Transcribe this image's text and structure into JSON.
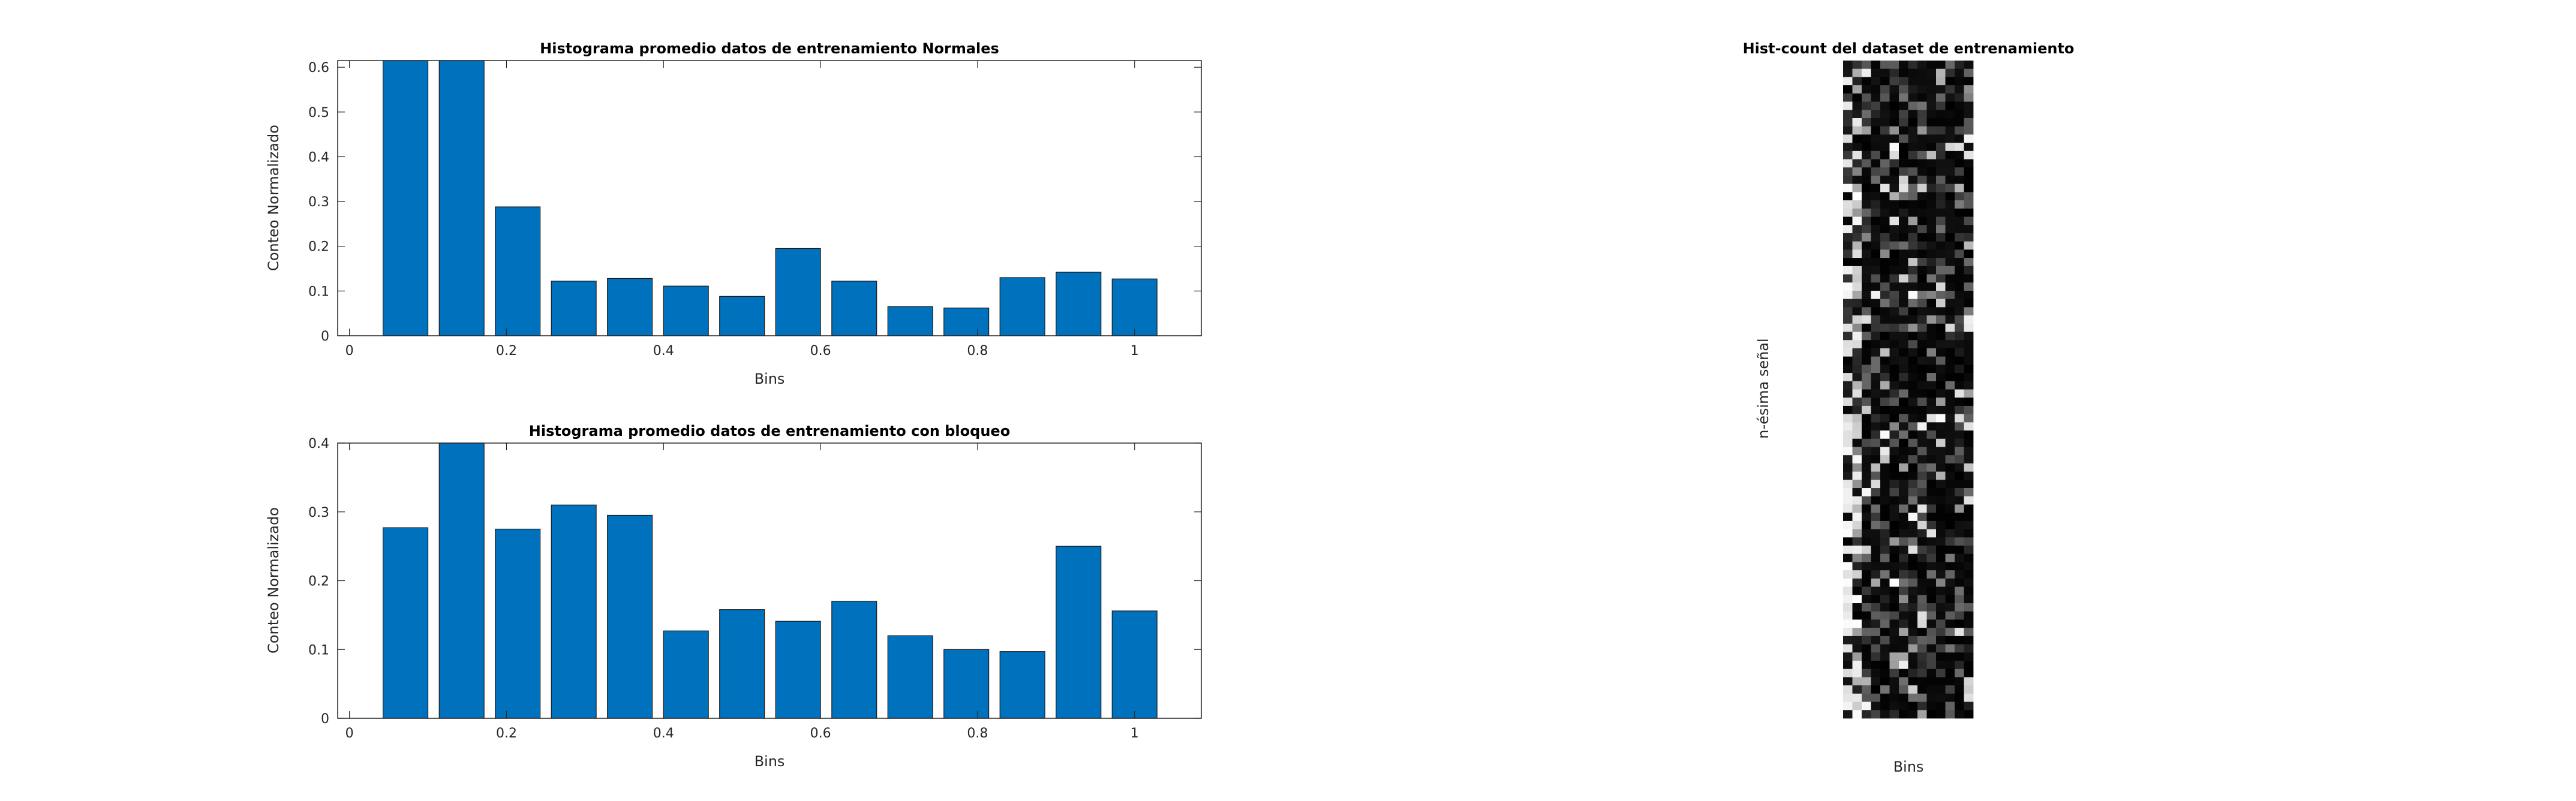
{
  "chart_data": [
    {
      "type": "bar",
      "title": "Histograma promedio datos de entrenamiento Normales",
      "xlabel": "Bins",
      "ylabel": "Conteo Normalizado",
      "x": [
        0.0714,
        0.1429,
        0.2143,
        0.2857,
        0.3571,
        0.4286,
        0.5,
        0.5714,
        0.6429,
        0.7143,
        0.7857,
        0.8571,
        0.9286,
        1.0
      ],
      "values": [
        0.62,
        0.62,
        0.288,
        0.122,
        0.128,
        0.111,
        0.088,
        0.195,
        0.122,
        0.065,
        0.062,
        0.13,
        0.142,
        0.127
      ],
      "xlim": [
        -0.015,
        1.085
      ],
      "ylim": [
        0,
        0.615
      ],
      "xticks": [
        0,
        0.2,
        0.4,
        0.6,
        0.8,
        1
      ],
      "xtick_labels": [
        "0",
        "0.2",
        "0.4",
        "0.6",
        "0.8",
        "1"
      ],
      "yticks": [
        0,
        0.1,
        0.2,
        0.3,
        0.4,
        0.5,
        0.6
      ],
      "ytick_labels": [
        "0",
        "0.1",
        "0.2",
        "0.3",
        "0.4",
        "0.5",
        "0.6"
      ],
      "bar_color": "#0072bd"
    },
    {
      "type": "bar",
      "title": "Histograma promedio datos de entrenamiento con bloqueo",
      "xlabel": "Bins",
      "ylabel": "Conteo Normalizado",
      "x": [
        0.0714,
        0.1429,
        0.2143,
        0.2857,
        0.3571,
        0.4286,
        0.5,
        0.5714,
        0.6429,
        0.7143,
        0.7857,
        0.8571,
        0.9286,
        1.0
      ],
      "values": [
        0.277,
        0.4,
        0.275,
        0.31,
        0.295,
        0.127,
        0.158,
        0.141,
        0.17,
        0.12,
        0.1,
        0.097,
        0.25,
        0.156
      ],
      "xlim": [
        -0.015,
        1.085
      ],
      "ylim": [
        0,
        0.4
      ],
      "xticks": [
        0,
        0.2,
        0.4,
        0.6,
        0.8,
        1
      ],
      "xtick_labels": [
        "0",
        "0.2",
        "0.4",
        "0.6",
        "0.8",
        "1"
      ],
      "yticks": [
        0,
        0.1,
        0.2,
        0.3,
        0.4
      ],
      "ytick_labels": [
        "0",
        "0.1",
        "0.2",
        "0.3",
        "0.4"
      ],
      "bar_color": "#0072bd"
    },
    {
      "type": "heatmap",
      "title": "Hist-count del dataset de entrenamiento",
      "xlabel": "Bins",
      "ylabel": "n-ésima señal",
      "columns": 14,
      "rows": 80,
      "colormap": "gray",
      "grid": false
    }
  ]
}
